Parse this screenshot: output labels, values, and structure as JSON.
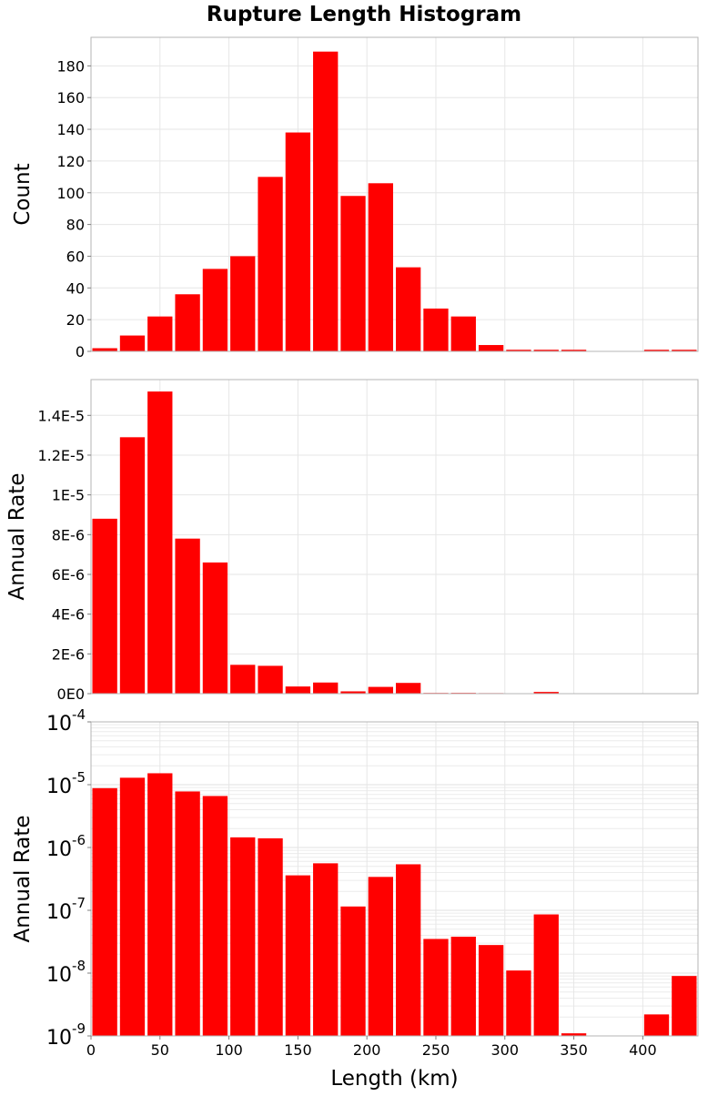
{
  "title": "Rupture Length Histogram",
  "chart_data": [
    {
      "type": "bar",
      "x_bin_centers_km": [
        10,
        30,
        50,
        70,
        90,
        110,
        130,
        150,
        170,
        190,
        210,
        230,
        250,
        270,
        290,
        310,
        330,
        350,
        370,
        390,
        410,
        430
      ],
      "values": [
        2,
        10,
        22,
        36,
        52,
        60,
        110,
        138,
        189,
        98,
        106,
        53,
        27,
        22,
        4,
        1,
        1,
        1,
        0,
        0,
        1,
        1
      ],
      "ylabel": "Count",
      "xlim": [
        0,
        440
      ],
      "ylim": [
        0,
        198
      ],
      "y_ticks": [
        0,
        20,
        40,
        60,
        80,
        100,
        120,
        140,
        160,
        180
      ],
      "y_tick_labels": [
        "0",
        "20",
        "40",
        "60",
        "80",
        "100",
        "120",
        "140",
        "160",
        "180"
      ],
      "grid": true,
      "bar_color": "#ff0000"
    },
    {
      "type": "bar",
      "x_bin_centers_km": [
        10,
        30,
        50,
        70,
        90,
        110,
        130,
        150,
        170,
        190,
        210,
        230,
        250,
        270,
        290,
        310,
        330,
        350,
        370,
        390,
        410,
        430
      ],
      "values": [
        8.8e-06,
        1.29e-05,
        1.52e-05,
        7.8e-06,
        6.6e-06,
        1.45e-06,
        1.4e-06,
        3.6e-07,
        5.6e-07,
        1.15e-07,
        3.4e-07,
        5.4e-07,
        3.5e-08,
        3.8e-08,
        2.8e-08,
        1.1e-08,
        8.6e-08,
        1.1e-09,
        0,
        0,
        2.2e-09,
        9e-09
      ],
      "ylabel": "Annual Rate",
      "xlim": [
        0,
        440
      ],
      "ylim": [
        0,
        1.58e-05
      ],
      "y_ticks": [
        0,
        2e-06,
        4e-06,
        6e-06,
        8e-06,
        1e-05,
        1.2e-05,
        1.4e-05
      ],
      "y_tick_labels": [
        "0E0",
        "2E-6",
        "4E-6",
        "6E-6",
        "8E-6",
        "1E-5",
        "1.2E-5",
        "1.4E-5"
      ],
      "grid": true,
      "bar_color": "#ff0000"
    },
    {
      "type": "bar",
      "log_scale_y": true,
      "x_bin_centers_km": [
        10,
        30,
        50,
        70,
        90,
        110,
        130,
        150,
        170,
        190,
        210,
        230,
        250,
        270,
        290,
        310,
        330,
        350,
        370,
        390,
        410,
        430
      ],
      "values": [
        8.8e-06,
        1.29e-05,
        1.52e-05,
        7.8e-06,
        6.6e-06,
        1.45e-06,
        1.4e-06,
        3.6e-07,
        5.6e-07,
        1.15e-07,
        3.4e-07,
        5.4e-07,
        3.5e-08,
        3.8e-08,
        2.8e-08,
        1.1e-08,
        8.6e-08,
        1.1e-09,
        0,
        0,
        2.2e-09,
        9e-09
      ],
      "ylabel": "Annual Rate",
      "xlabel": "Length (km)",
      "xlim": [
        0,
        440
      ],
      "ylim": [
        1e-09,
        0.0001
      ],
      "y_ticks": [
        1e-09,
        1e-08,
        1e-07,
        1e-06,
        1e-05,
        0.0001
      ],
      "y_tick_bases": [
        "10",
        "10",
        "10",
        "10",
        "10",
        "10"
      ],
      "y_tick_exponents": [
        "-9",
        "-8",
        "-7",
        "-6",
        "-5",
        "-4"
      ],
      "x_ticks": [
        0,
        50,
        100,
        150,
        200,
        250,
        300,
        350,
        400
      ],
      "x_tick_labels": [
        "0",
        "50",
        "100",
        "150",
        "200",
        "250",
        "300",
        "350",
        "400"
      ],
      "grid": true,
      "bar_color": "#ff0000"
    }
  ]
}
